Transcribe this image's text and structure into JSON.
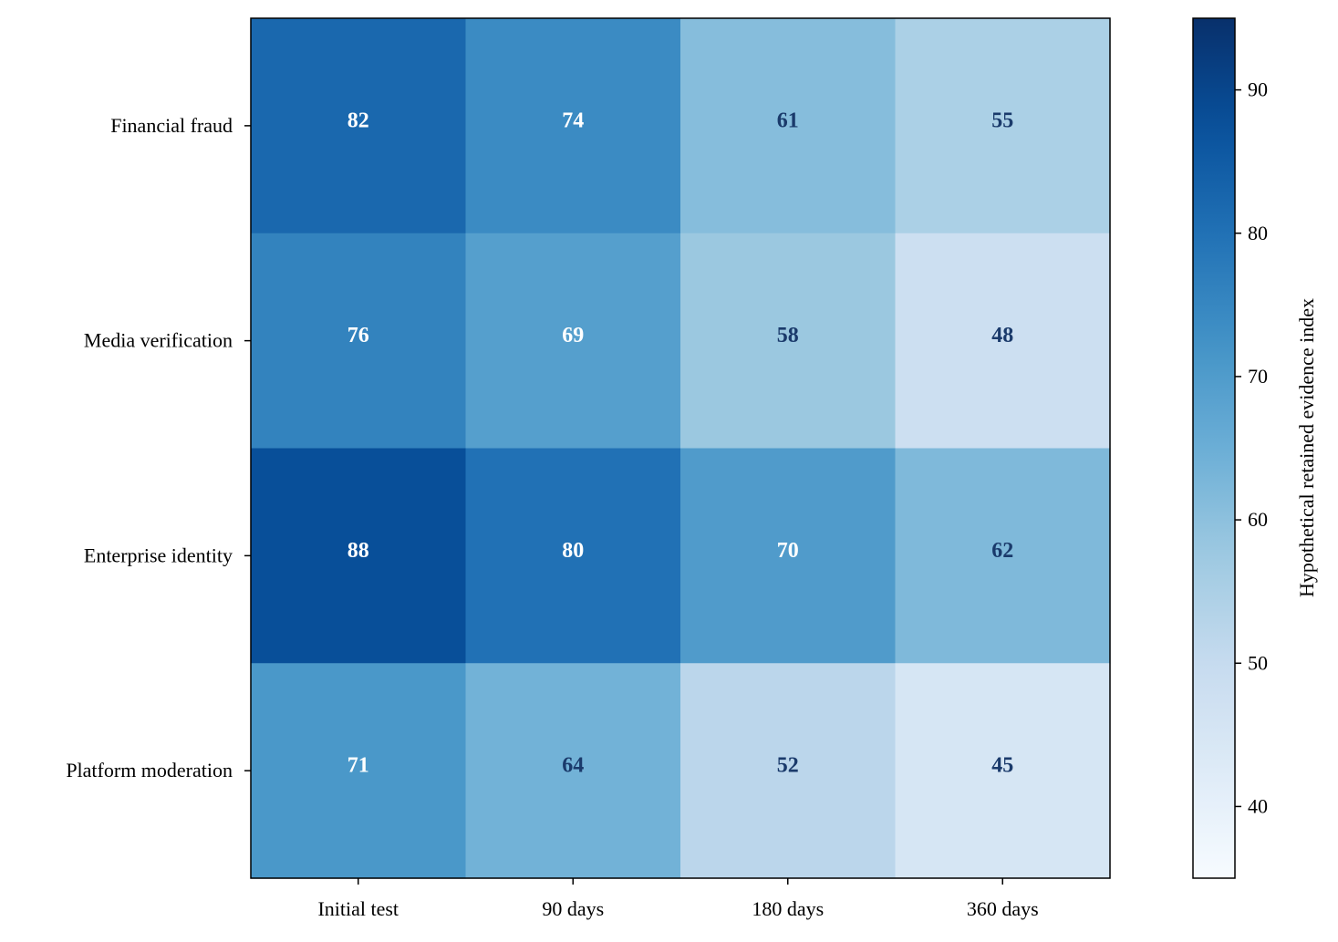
{
  "chart_data": {
    "type": "heatmap",
    "rows": [
      "Financial fraud",
      "Media verification",
      "Enterprise identity",
      "Platform moderation"
    ],
    "columns": [
      "Initial test",
      "90 days",
      "180 days",
      "360 days"
    ],
    "values": [
      [
        82,
        74,
        61,
        55
      ],
      [
        76,
        69,
        58,
        48
      ],
      [
        88,
        80,
        70,
        62
      ],
      [
        71,
        64,
        52,
        45
      ]
    ],
    "colorbar": {
      "label": "Hypothetical retained evidence index",
      "range": [
        35,
        95
      ],
      "ticks": [
        40,
        50,
        60,
        70,
        80,
        90
      ]
    },
    "colormap": "Blues",
    "annotation_colors": {
      "dark_cells": "#ffffff",
      "light_cells": "#1a3a6b"
    }
  }
}
